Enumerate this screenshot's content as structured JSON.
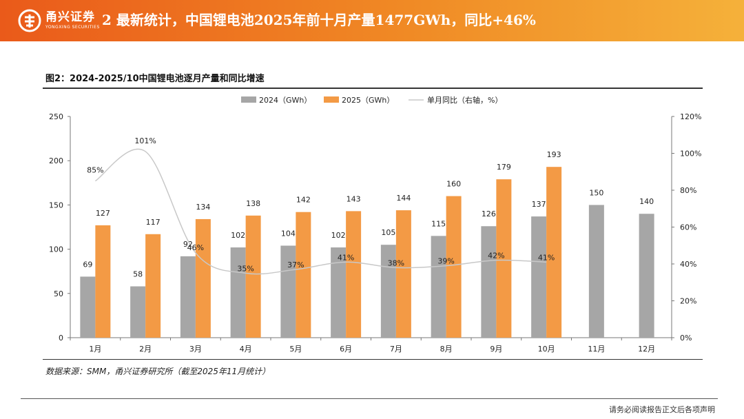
{
  "header": {
    "brand_cn": "甬兴证券",
    "brand_en": "YONGXING SECURITIES",
    "title": "2 最新统计，中国锂电池2025年前十月产量1477GWh，同比+46%"
  },
  "figure": {
    "title": "图2：2024-2025/10中国锂电池逐月产量和同比增速"
  },
  "source": "数据来源：SMM，甬兴证券研究所（截至2025年11月统计）",
  "footer": {
    "disclaimer": "请务必阅读报告正文后各项声明"
  },
  "colors": {
    "series2024": "#a6a6a6",
    "series2025": "#f39a45",
    "yoy": "#c8c8c8",
    "accent": "#ea5a1a"
  },
  "chart_data": {
    "type": "bar",
    "categories": [
      "1月",
      "2月",
      "3月",
      "4月",
      "5月",
      "6月",
      "7月",
      "8月",
      "9月",
      "10月",
      "11月",
      "12月"
    ],
    "series": [
      {
        "name": "2024（GWh）",
        "values": [
          69,
          58,
          92,
          102,
          104,
          102,
          105,
          115,
          126,
          137,
          150,
          140
        ]
      },
      {
        "name": "2025（GWh）",
        "values": [
          127,
          117,
          134,
          138,
          142,
          143,
          144,
          160,
          179,
          193,
          null,
          null
        ]
      }
    ],
    "line_series": {
      "name": "单月同比（右轴，%）",
      "values": [
        85,
        101,
        46,
        35,
        37,
        41,
        38,
        39,
        42,
        41,
        null,
        null
      ],
      "labels": [
        "85%",
        "101%",
        "46%",
        "35%",
        "37%",
        "41%",
        "38%",
        "39%",
        "42%",
        "41%",
        "",
        ""
      ]
    },
    "y_left": {
      "min": 0,
      "max": 250,
      "ticks": [
        "0",
        "50",
        "100",
        "150",
        "200",
        "250"
      ]
    },
    "y_right": {
      "min": 0,
      "max": 120,
      "ticks": [
        "0%",
        "20%",
        "40%",
        "60%",
        "80%",
        "100%",
        "120%"
      ]
    },
    "legend_position": "top-center",
    "grid": false
  }
}
